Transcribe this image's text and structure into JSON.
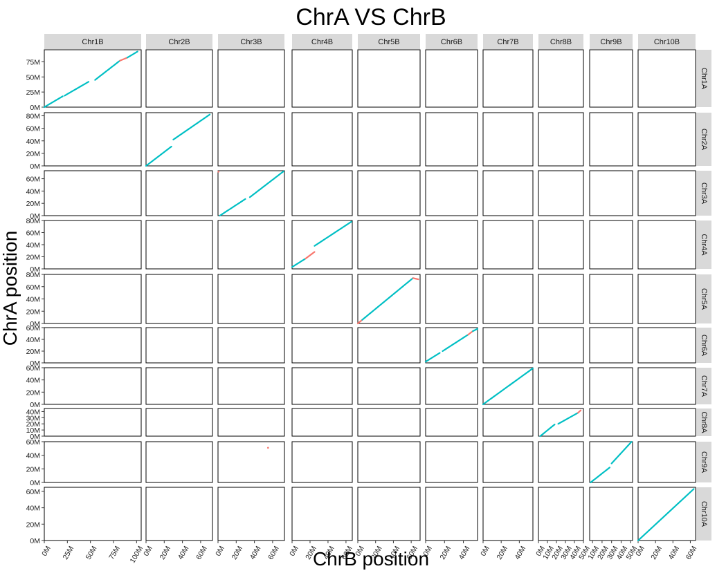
{
  "chart_data": {
    "type": "scatter",
    "title": "ChrA VS ChrB",
    "xlabel": "ChrB position",
    "ylabel": "ChrA position",
    "legend": "none",
    "grid": false,
    "colors": {
      "main": "#00BFC4",
      "inverted": "#F8766D",
      "strip": "#D9D9D9",
      "panel_border": "#000000"
    },
    "columns": [
      {
        "name": "Chr1B",
        "xlim": [
          0,
          105000000
        ],
        "ticks": [
          0,
          25000000,
          50000000,
          75000000,
          100000000
        ],
        "tick_labels": [
          "0M",
          "25M",
          "50M",
          "75M",
          "100M"
        ]
      },
      {
        "name": "Chr2B",
        "xlim": [
          0,
          73000000
        ],
        "ticks": [
          0,
          20000000,
          40000000,
          60000000
        ],
        "tick_labels": [
          "0M",
          "20M",
          "40M",
          "60M"
        ]
      },
      {
        "name": "Chr3B",
        "xlim": [
          0,
          73000000
        ],
        "ticks": [
          0,
          20000000,
          40000000,
          60000000
        ],
        "tick_labels": [
          "0M",
          "20M",
          "40M",
          "60M"
        ]
      },
      {
        "name": "Chr4B",
        "xlim": [
          0,
          67000000
        ],
        "ticks": [
          0,
          20000000,
          40000000,
          60000000
        ],
        "tick_labels": [
          "0M",
          "20M",
          "40M",
          "60M"
        ]
      },
      {
        "name": "Chr5B",
        "xlim": [
          0,
          70000000
        ],
        "ticks": [
          0,
          20000000,
          40000000,
          60000000
        ],
        "tick_labels": [
          "0M",
          "20M",
          "40M",
          "60M"
        ]
      },
      {
        "name": "Chr6B",
        "xlim": [
          0,
          55000000
        ],
        "ticks": [
          0,
          20000000,
          40000000
        ],
        "tick_labels": [
          "0M",
          "20M",
          "40M"
        ]
      },
      {
        "name": "Chr7B",
        "xlim": [
          0,
          55000000
        ],
        "ticks": [
          0,
          20000000,
          40000000
        ],
        "tick_labels": [
          "0M",
          "20M",
          "40M"
        ]
      },
      {
        "name": "Chr8B",
        "xlim": [
          0,
          50000000
        ],
        "ticks": [
          0,
          10000000,
          20000000,
          30000000,
          40000000,
          50000000
        ],
        "tick_labels": [
          "0M",
          "10M",
          "20M",
          "30M",
          "40M",
          "50M"
        ]
      },
      {
        "name": "Chr9B",
        "xlim": [
          7000000,
          52000000
        ],
        "ticks": [
          10000000,
          20000000,
          30000000,
          40000000,
          50000000
        ],
        "tick_labels": [
          "10M",
          "20M",
          "30M",
          "40M",
          "50M"
        ]
      },
      {
        "name": "Chr10B",
        "xlim": [
          0,
          66000000
        ],
        "ticks": [
          0,
          20000000,
          40000000,
          60000000
        ],
        "tick_labels": [
          "0M",
          "20M",
          "40M",
          "60M"
        ]
      }
    ],
    "rows": [
      {
        "name": "Chr1A",
        "ylim": [
          0,
          95000000
        ],
        "ticks": [
          0,
          25000000,
          50000000,
          75000000
        ],
        "tick_labels": [
          "0M",
          "25M",
          "50M",
          "75M"
        ]
      },
      {
        "name": "Chr2A",
        "ylim": [
          0,
          85000000
        ],
        "ticks": [
          0,
          20000000,
          40000000,
          60000000,
          80000000
        ],
        "tick_labels": [
          "0M",
          "20M",
          "40M",
          "60M",
          "80M"
        ]
      },
      {
        "name": "Chr3A",
        "ylim": [
          0,
          73000000
        ],
        "ticks": [
          0,
          20000000,
          40000000,
          60000000
        ],
        "tick_labels": [
          "0M",
          "20M",
          "40M",
          "60M"
        ]
      },
      {
        "name": "Chr4A",
        "ylim": [
          0,
          80000000
        ],
        "ticks": [
          0,
          20000000,
          40000000,
          60000000,
          80000000
        ],
        "tick_labels": [
          "0M",
          "20M",
          "40M",
          "60M",
          "80M"
        ]
      },
      {
        "name": "Chr5A",
        "ylim": [
          0,
          80000000
        ],
        "ticks": [
          0,
          20000000,
          40000000,
          60000000,
          80000000
        ],
        "tick_labels": [
          "0M",
          "20M",
          "40M",
          "60M",
          "80M"
        ]
      },
      {
        "name": "Chr6A",
        "ylim": [
          0,
          60000000
        ],
        "ticks": [
          0,
          20000000,
          40000000,
          60000000
        ],
        "tick_labels": [
          "0M",
          "20M",
          "40M",
          "60M"
        ]
      },
      {
        "name": "Chr7A",
        "ylim": [
          0,
          60000000
        ],
        "ticks": [
          0,
          20000000,
          40000000,
          60000000
        ],
        "tick_labels": [
          "0M",
          "20M",
          "40M",
          "60M"
        ]
      },
      {
        "name": "Chr8A",
        "ylim": [
          0,
          45000000
        ],
        "ticks": [
          0,
          10000000,
          20000000,
          30000000,
          40000000
        ],
        "tick_labels": [
          "0M",
          "10M",
          "20M",
          "30M",
          "40M"
        ]
      },
      {
        "name": "Chr9A",
        "ylim": [
          0,
          60000000
        ],
        "ticks": [
          0,
          20000000,
          40000000,
          60000000
        ],
        "tick_labels": [
          "0M",
          "20M",
          "40M",
          "60M"
        ]
      },
      {
        "name": "Chr10A",
        "ylim": [
          0,
          65000000
        ],
        "ticks": [
          0,
          20000000,
          40000000,
          60000000
        ],
        "tick_labels": [
          "0M",
          "20M",
          "40M",
          "60M"
        ]
      }
    ],
    "panels": [
      {
        "row": "Chr1A",
        "col": "Chr1B",
        "segments": [
          {
            "x": [
              0,
              20000000
            ],
            "y": [
              0,
              18000000
            ],
            "color": "main"
          },
          {
            "x": [
              22000000,
              48000000
            ],
            "y": [
              19000000,
              42000000
            ],
            "color": "main"
          },
          {
            "x": [
              55000000,
              82000000
            ],
            "y": [
              45000000,
              77000000
            ],
            "color": "main"
          },
          {
            "x": [
              82000000,
              90000000
            ],
            "y": [
              77000000,
              82000000
            ],
            "color": "inverted"
          },
          {
            "x": [
              90000000,
              101000000
            ],
            "y": [
              82000000,
              92000000
            ],
            "color": "main"
          }
        ]
      },
      {
        "row": "Chr2A",
        "col": "Chr2B",
        "segments": [
          {
            "x": [
              0,
              28000000
            ],
            "y": [
              0,
              31000000
            ],
            "color": "main"
          },
          {
            "x": [
              30000000,
              70000000
            ],
            "y": [
              42000000,
              82000000
            ],
            "color": "main"
          }
        ]
      },
      {
        "row": "Chr3A",
        "col": "Chr3B",
        "segments": [
          {
            "x": [
              2000000,
              30000000
            ],
            "y": [
              0,
              27000000
            ],
            "color": "main"
          },
          {
            "x": [
              35000000,
              72000000
            ],
            "y": [
              30000000,
              72000000
            ],
            "color": "main"
          }
        ]
      },
      {
        "row": "Chr3A",
        "col": "Chr3B",
        "points": [
          {
            "x": 500000,
            "y": 71500000,
            "color": "inverted"
          }
        ]
      },
      {
        "row": "Chr4A",
        "col": "Chr4B",
        "segments": [
          {
            "x": [
              0,
              15000000
            ],
            "y": [
              3000000,
              17000000
            ],
            "color": "main"
          },
          {
            "x": [
              15000000,
              25000000
            ],
            "y": [
              17000000,
              28000000
            ],
            "color": "inverted"
          },
          {
            "x": [
              25000000,
              66000000
            ],
            "y": [
              38000000,
              78000000
            ],
            "color": "main"
          }
        ]
      },
      {
        "row": "Chr5A",
        "col": "Chr5B",
        "segments": [
          {
            "x": [
              0,
              5000000
            ],
            "y": [
              0,
              6000000
            ],
            "color": "inverted"
          },
          {
            "x": [
              5000000,
              62000000
            ],
            "y": [
              6000000,
              74000000
            ],
            "color": "main"
          },
          {
            "x": [
              62000000,
              68000000
            ],
            "y": [
              74000000,
              72000000
            ],
            "color": "inverted"
          }
        ]
      },
      {
        "row": "Chr6A",
        "col": "Chr6B",
        "segments": [
          {
            "x": [
              0,
              15000000
            ],
            "y": [
              2000000,
              17000000
            ],
            "color": "main"
          },
          {
            "x": [
              18000000,
              45000000
            ],
            "y": [
              20000000,
              48000000
            ],
            "color": "main"
          },
          {
            "x": [
              45000000,
              50000000
            ],
            "y": [
              48000000,
              54000000
            ],
            "color": "inverted"
          },
          {
            "x": [
              50000000,
              55000000
            ],
            "y": [
              54000000,
              58000000
            ],
            "color": "main"
          }
        ]
      },
      {
        "row": "Chr7A",
        "col": "Chr7B",
        "segments": [
          {
            "x": [
              0,
              55000000
            ],
            "y": [
              0,
              59000000
            ],
            "color": "main"
          }
        ]
      },
      {
        "row": "Chr8A",
        "col": "Chr8B",
        "segments": [
          {
            "x": [
              2000000,
              18000000
            ],
            "y": [
              0,
              19000000
            ],
            "color": "main"
          },
          {
            "x": [
              22000000,
              44000000
            ],
            "y": [
              20000000,
              38000000
            ],
            "color": "main"
          },
          {
            "x": [
              44000000,
              47000000
            ],
            "y": [
              38000000,
              42000000
            ],
            "color": "inverted"
          }
        ]
      },
      {
        "row": "Chr9A",
        "col": "Chr3B",
        "points": [
          {
            "x": 55000000,
            "y": 51000000,
            "color": "inverted"
          }
        ]
      },
      {
        "row": "Chr9A",
        "col": "Chr9B",
        "segments": [
          {
            "x": [
              8000000,
              28000000
            ],
            "y": [
              0,
              22000000
            ],
            "color": "main"
          },
          {
            "x": [
              30000000,
              51000000
            ],
            "y": [
              28000000,
              60000000
            ],
            "color": "main"
          }
        ]
      },
      {
        "row": "Chr10A",
        "col": "Chr10B",
        "segments": [
          {
            "x": [
              0,
              64000000
            ],
            "y": [
              0,
              63000000
            ],
            "color": "main"
          }
        ]
      }
    ]
  }
}
